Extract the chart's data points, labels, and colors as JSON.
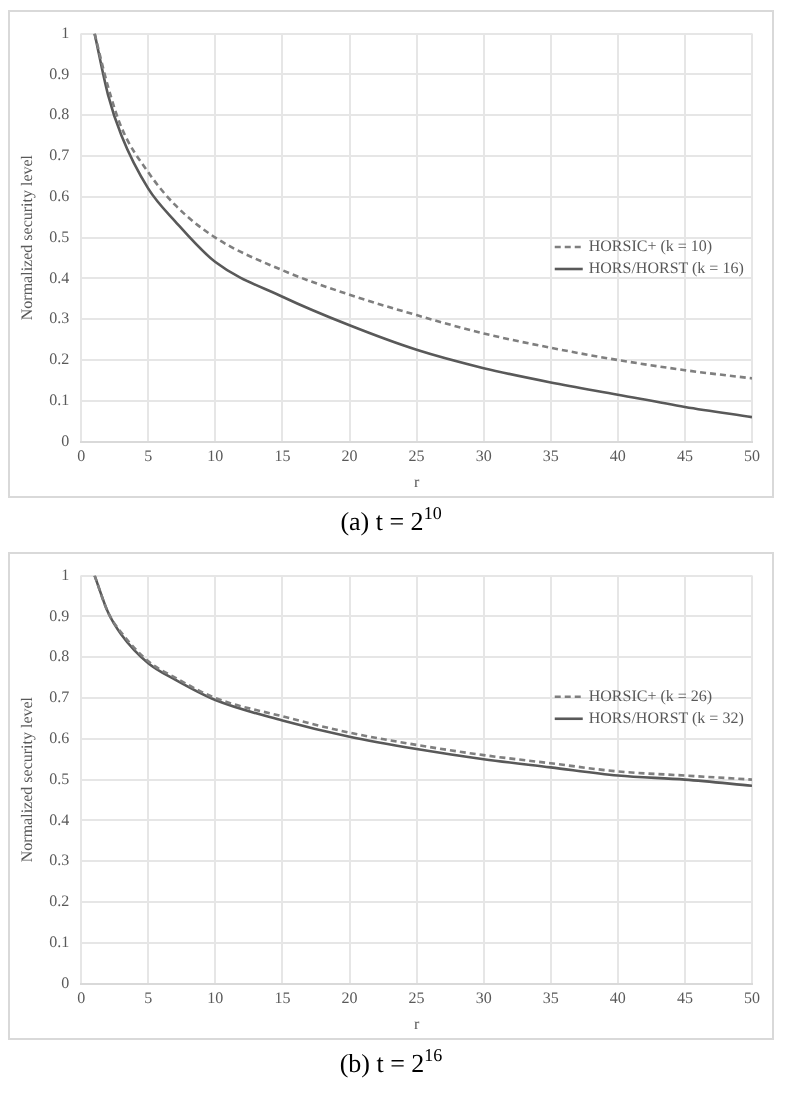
{
  "chart_data": [
    {
      "type": "line",
      "title": "(a) t = 2$^{10}$",
      "xlabel": "r",
      "ylabel": "Normalized security level",
      "x": [
        1,
        2,
        3,
        5,
        7,
        10,
        15,
        20,
        25,
        30,
        35,
        40,
        45,
        50
      ],
      "xlim": [
        0,
        50
      ],
      "xticks": [
        0,
        5,
        10,
        15,
        20,
        25,
        30,
        35,
        40,
        45,
        50
      ],
      "ylim": [
        0,
        1
      ],
      "yticks": [
        0,
        0.1,
        0.2,
        0.3,
        0.4,
        0.5,
        0.6,
        0.7,
        0.8,
        0.9,
        1
      ],
      "grid": true,
      "legend": "right",
      "marker": "none",
      "series": [
        {
          "name": "HORSIC+ (k = 10)",
          "color": "#7f7f7f",
          "line_style": "dashed",
          "values": [
            1,
            0.87,
            0.77,
            0.66,
            0.58,
            0.5,
            0.42,
            0.36,
            0.31,
            0.265,
            0.23,
            0.2,
            0.175,
            0.155
          ]
        },
        {
          "name": "HORS/HORST (k = 16)",
          "color": "#595959",
          "line_style": "solid",
          "values": [
            1,
            0.85,
            0.75,
            0.62,
            0.54,
            0.44,
            0.355,
            0.285,
            0.225,
            0.18,
            0.145,
            0.115,
            0.085,
            0.06
          ]
        }
      ]
    },
    {
      "type": "line",
      "title": "(b) t = 2$^{16}$",
      "xlabel": "r",
      "ylabel": "Normalized security level",
      "x": [
        1,
        2,
        3,
        5,
        7,
        10,
        15,
        20,
        25,
        30,
        35,
        40,
        45,
        50
      ],
      "xlim": [
        0,
        50
      ],
      "xticks": [
        0,
        5,
        10,
        15,
        20,
        25,
        30,
        35,
        40,
        45,
        50
      ],
      "ylim": [
        0,
        1
      ],
      "yticks": [
        0,
        0.1,
        0.2,
        0.3,
        0.4,
        0.5,
        0.6,
        0.7,
        0.8,
        0.9,
        1
      ],
      "grid": true,
      "legend": "top right",
      "marker": "none",
      "series": [
        {
          "name": "HORSIC+ (k = 26)",
          "color": "#7f7f7f",
          "line_style": "dashed",
          "values": [
            1,
            0.91,
            0.86,
            0.79,
            0.75,
            0.7,
            0.655,
            0.615,
            0.585,
            0.56,
            0.54,
            0.52,
            0.51,
            0.5
          ]
        },
        {
          "name": "HORS/HORST (k = 32)",
          "color": "#595959",
          "line_style": "solid",
          "values": [
            1,
            0.91,
            0.855,
            0.785,
            0.745,
            0.695,
            0.645,
            0.605,
            0.575,
            0.55,
            0.53,
            0.51,
            0.5,
            0.485
          ]
        }
      ]
    }
  ]
}
